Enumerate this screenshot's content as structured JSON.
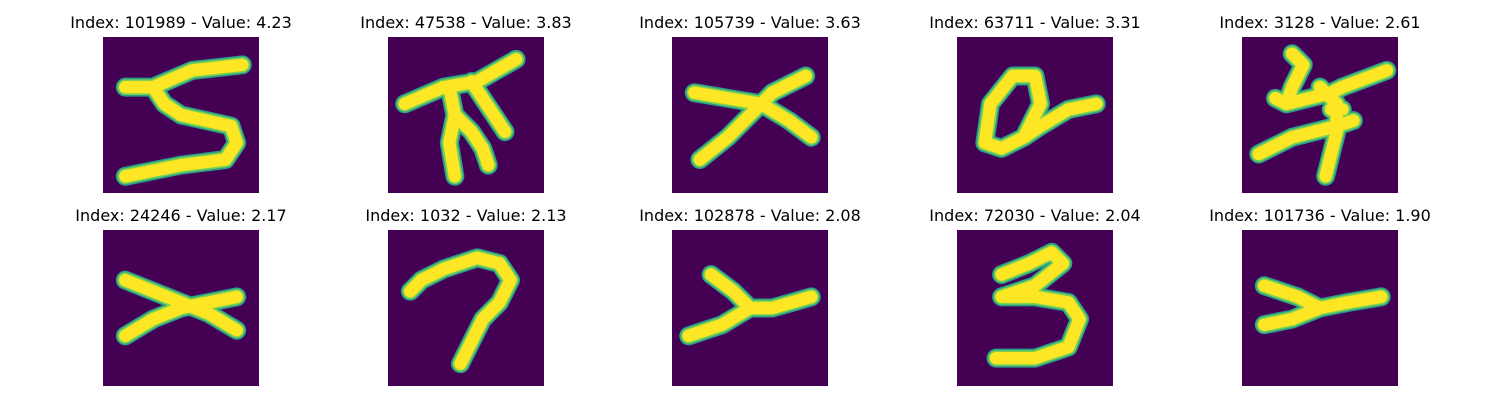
{
  "panels": [
    {
      "title": "Index: 101989 - Value: 4.23",
      "glyph": "digit-5-glyph"
    },
    {
      "title": "Index: 47538 - Value: 3.83",
      "glyph": "tree-glyph"
    },
    {
      "title": "Index: 105739 - Value: 3.63",
      "glyph": "cross-glyph"
    },
    {
      "title": "Index: 63711 - Value: 3.31",
      "glyph": "loop-glyph"
    },
    {
      "title": "Index: 3128 - Value: 2.61",
      "glyph": "scribble-glyph"
    },
    {
      "title": "Index: 24246 - Value: 2.17",
      "glyph": "x-glyph"
    },
    {
      "title": "Index: 1032 - Value: 2.13",
      "glyph": "digit-7-glyph"
    },
    {
      "title": "Index: 102878 - Value: 2.08",
      "glyph": "y-glyph"
    },
    {
      "title": "Index: 72030 - Value: 2.04",
      "glyph": "digit-3-glyph"
    },
    {
      "title": "Index: 101736 - Value: 1.90",
      "glyph": "y-glyph"
    }
  ],
  "colors": {
    "background": "#440154",
    "outer": "#2a9e8a",
    "middle": "#7ad151",
    "inner": "#fde725"
  }
}
